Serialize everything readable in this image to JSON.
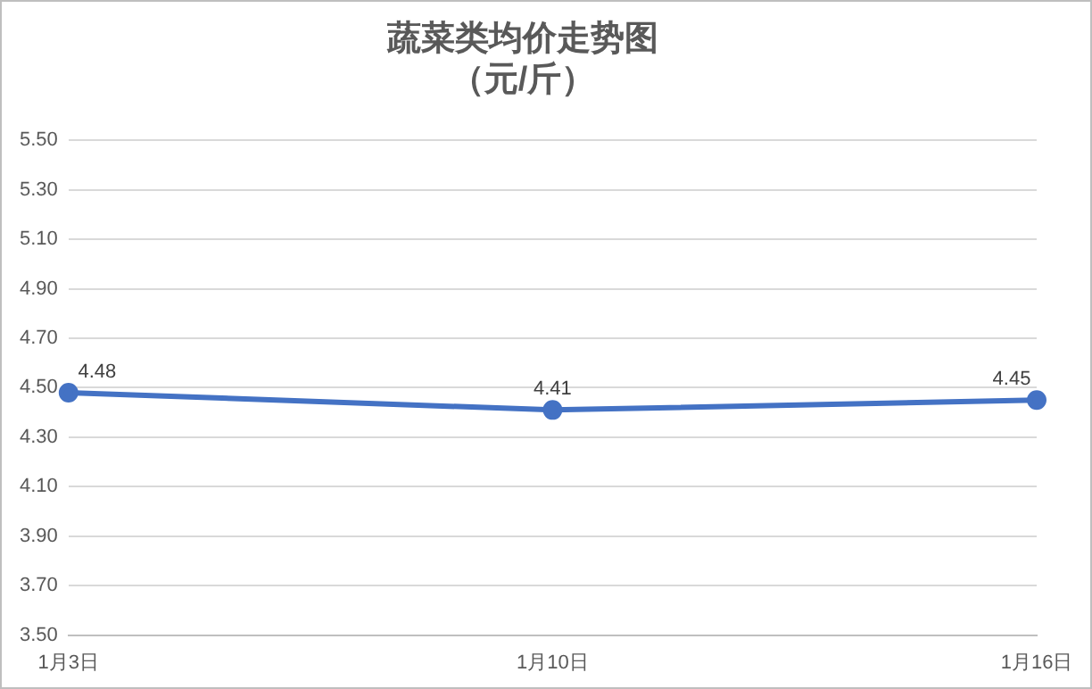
{
  "chart_data": {
    "type": "line",
    "title": "蔬菜类均价走势图",
    "subtitle": "（元/斤）",
    "categories": [
      "1月3日",
      "1月10日",
      "1月16日"
    ],
    "series": [
      {
        "color": "#4472c4",
        "values": [
          4.48,
          4.41,
          4.45
        ]
      }
    ],
    "ylim": [
      3.5,
      5.5
    ],
    "yticks": [
      {
        "value": 3.5,
        "label": "3.50"
      },
      {
        "value": 3.7,
        "label": "3.70"
      },
      {
        "value": 3.9,
        "label": "3.90"
      },
      {
        "value": 4.1,
        "label": "4.10"
      },
      {
        "value": 4.3,
        "label": "4.30"
      },
      {
        "value": 4.5,
        "label": "4.50"
      },
      {
        "value": 4.7,
        "label": "4.70"
      },
      {
        "value": 4.9,
        "label": "4.90"
      },
      {
        "value": 5.1,
        "label": "5.10"
      },
      {
        "value": 5.3,
        "label": "5.30"
      },
      {
        "value": 5.5,
        "label": "5.50"
      }
    ],
    "grid": "y",
    "legend": false,
    "marker": "circle",
    "line_style": "solid",
    "data_labels": true
  }
}
